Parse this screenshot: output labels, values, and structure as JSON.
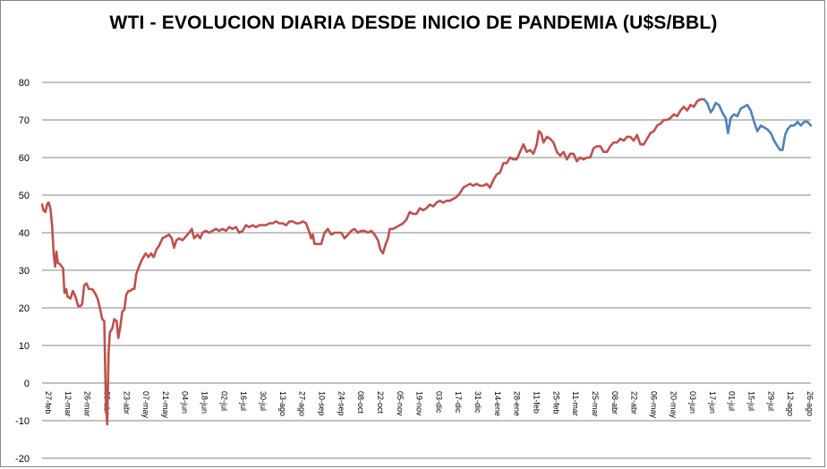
{
  "chart_data": {
    "type": "line",
    "title": "WTI - EVOLUCION DIARIA DESDE INICIO DE PANDEMIA (U$S/BBL)",
    "ylim": [
      -20,
      80
    ],
    "yticks": [
      "-20",
      "-10",
      "0",
      "10",
      "20",
      "30",
      "40",
      "50",
      "60",
      "70",
      "80"
    ],
    "grid": true,
    "legend": "none",
    "xlabels": [
      "27-feb",
      "12-mar",
      "26-mar",
      "09-abr",
      "23-abr",
      "07-may",
      "21-may",
      "04-jun",
      "18-jun",
      "02-jul",
      "16-jul",
      "30-jul",
      "13-ago",
      "27-ago",
      "10-sep",
      "24-sep",
      "08-oct",
      "22-oct",
      "05-nov",
      "19-nov",
      "03-dic",
      "17-dic",
      "31-dic",
      "14-ene",
      "28-ene",
      "11-feb",
      "25-feb",
      "11-mar",
      "25-mar",
      "08-abr",
      "22-abr",
      "06-may",
      "20-may",
      "03-jun",
      "17-jun",
      "01-jul",
      "15-jul",
      "29-jul",
      "12-ago",
      "26-ago"
    ],
    "series": [
      {
        "color": "#c0504d",
        "points": [
          [
            0,
            47.5
          ],
          [
            0.4,
            46
          ],
          [
            1,
            45.5
          ],
          [
            1.6,
            47.8
          ],
          [
            2,
            48
          ],
          [
            2.5,
            46.5
          ],
          [
            3,
            42
          ],
          [
            3.5,
            34
          ],
          [
            3.9,
            31
          ],
          [
            4.3,
            35
          ],
          [
            4.7,
            32
          ],
          [
            5.5,
            31.5
          ],
          [
            6.3,
            30.5
          ],
          [
            6.7,
            24
          ],
          [
            7.2,
            25
          ],
          [
            7.6,
            23
          ],
          [
            8.5,
            22.5
          ],
          [
            9.2,
            24.5
          ],
          [
            10,
            23
          ],
          [
            10.8,
            20.5
          ],
          [
            11.5,
            20.5
          ],
          [
            12,
            21
          ],
          [
            12.6,
            26
          ],
          [
            13.3,
            26.5
          ],
          [
            14,
            25
          ],
          [
            15,
            25
          ],
          [
            15.8,
            24
          ],
          [
            16.6,
            22.5
          ],
          [
            17.3,
            20
          ],
          [
            18,
            17
          ],
          [
            18.6,
            16.5
          ],
          [
            19.1,
            -5
          ],
          [
            19.5,
            -11
          ],
          [
            19.9,
            8
          ],
          [
            20.3,
            13.5
          ],
          [
            21,
            14.5
          ],
          [
            21.6,
            17
          ],
          [
            22.3,
            16.5
          ],
          [
            22.8,
            12
          ],
          [
            23.4,
            15
          ],
          [
            24,
            19
          ],
          [
            24.6,
            19.5
          ],
          [
            25.2,
            23.5
          ],
          [
            25.8,
            24.5
          ],
          [
            26.4,
            24.5
          ],
          [
            27,
            25
          ],
          [
            27.6,
            25
          ],
          [
            28.2,
            29
          ],
          [
            29,
            31
          ],
          [
            30,
            33
          ],
          [
            31,
            34.5
          ],
          [
            31.8,
            33.5
          ],
          [
            32.6,
            34.5
          ],
          [
            33.4,
            33.5
          ],
          [
            34.2,
            35.5
          ],
          [
            35,
            36.5
          ],
          [
            36,
            38.5
          ],
          [
            37,
            39
          ],
          [
            38,
            39.5
          ],
          [
            38.8,
            38.5
          ],
          [
            39.5,
            36
          ],
          [
            40.2,
            38
          ],
          [
            41,
            38.5
          ],
          [
            42,
            38
          ],
          [
            43,
            39
          ],
          [
            44,
            40
          ],
          [
            44.8,
            41
          ],
          [
            45.5,
            38.5
          ],
          [
            46.5,
            39.5
          ],
          [
            47.3,
            38.5
          ],
          [
            48,
            40
          ],
          [
            49,
            40.5
          ],
          [
            50,
            40
          ],
          [
            51,
            40.5
          ],
          [
            52,
            41
          ],
          [
            53,
            40.5
          ],
          [
            54,
            41
          ],
          [
            55,
            40.5
          ],
          [
            56,
            41.5
          ],
          [
            57,
            41
          ],
          [
            58,
            41.5
          ],
          [
            59,
            40
          ],
          [
            60,
            40.5
          ],
          [
            61,
            42
          ],
          [
            62,
            41.5
          ],
          [
            63,
            42
          ],
          [
            64,
            41.5
          ],
          [
            65,
            42
          ],
          [
            66,
            42
          ],
          [
            67,
            42
          ],
          [
            68,
            42.5
          ],
          [
            69,
            42.5
          ],
          [
            70,
            43
          ],
          [
            71,
            42.5
          ],
          [
            72,
            42.5
          ],
          [
            73,
            42
          ],
          [
            74,
            43
          ],
          [
            75,
            43
          ],
          [
            76,
            42.5
          ],
          [
            77,
            42.5
          ],
          [
            78,
            43
          ],
          [
            79,
            42.5
          ],
          [
            80,
            40
          ],
          [
            80.5,
            38.5
          ],
          [
            81,
            39.5
          ],
          [
            81.5,
            37
          ],
          [
            82.5,
            37
          ],
          [
            83.5,
            37
          ],
          [
            84.5,
            40
          ],
          [
            85.5,
            41
          ],
          [
            86.5,
            39.5
          ],
          [
            87.5,
            40
          ],
          [
            88.5,
            40
          ],
          [
            89.5,
            40
          ],
          [
            90.5,
            38.5
          ],
          [
            91.5,
            39.5
          ],
          [
            92.5,
            40.5
          ],
          [
            93.5,
            41
          ],
          [
            94.5,
            40
          ],
          [
            95.5,
            40.5
          ],
          [
            96.5,
            40.5
          ],
          [
            97.5,
            40
          ],
          [
            98.5,
            40.5
          ],
          [
            99.5,
            39.5
          ],
          [
            100.5,
            38
          ],
          [
            101.2,
            35.5
          ],
          [
            102,
            34.5
          ],
          [
            102.8,
            37
          ],
          [
            103.5,
            38.5
          ],
          [
            104,
            41
          ],
          [
            105,
            41
          ],
          [
            106,
            41.5
          ],
          [
            107,
            42
          ],
          [
            108,
            42.5
          ],
          [
            109,
            43.5
          ],
          [
            110,
            45.5
          ],
          [
            111,
            45
          ],
          [
            112,
            45
          ],
          [
            113,
            46.5
          ],
          [
            114,
            46
          ],
          [
            115,
            46.5
          ],
          [
            116,
            47.5
          ],
          [
            117,
            47
          ],
          [
            118,
            48
          ],
          [
            119,
            48.5
          ],
          [
            120,
            48
          ],
          [
            121,
            48.5
          ],
          [
            122,
            48.5
          ],
          [
            123,
            49
          ],
          [
            124,
            49.5
          ],
          [
            125,
            50.5
          ],
          [
            126,
            52
          ],
          [
            127,
            52.5
          ],
          [
            128,
            53
          ],
          [
            129,
            52.5
          ],
          [
            130,
            53
          ],
          [
            131,
            52.5
          ],
          [
            132,
            52.5
          ],
          [
            133,
            53
          ],
          [
            134,
            52
          ],
          [
            135,
            54
          ],
          [
            136,
            55.5
          ],
          [
            137,
            56
          ],
          [
            138,
            58.5
          ],
          [
            139,
            58.5
          ],
          [
            140,
            60
          ],
          [
            141,
            59.5
          ],
          [
            142,
            59.5
          ],
          [
            143,
            61.5
          ],
          [
            144,
            63.5
          ],
          [
            145,
            61.5
          ],
          [
            146,
            62
          ],
          [
            147,
            61
          ],
          [
            148,
            63.5
          ],
          [
            148.6,
            67
          ],
          [
            149.3,
            66.5
          ],
          [
            150,
            64
          ],
          [
            151,
            65.5
          ],
          [
            152,
            65
          ],
          [
            153,
            64
          ],
          [
            154,
            61.5
          ],
          [
            155,
            60.5
          ],
          [
            156,
            61.5
          ],
          [
            157,
            59.5
          ],
          [
            158,
            61
          ],
          [
            159,
            61
          ],
          [
            160,
            59
          ],
          [
            161,
            60
          ],
          [
            162,
            59.5
          ],
          [
            163,
            60
          ],
          [
            164,
            60
          ],
          [
            165,
            62.5
          ],
          [
            166,
            63
          ],
          [
            167,
            63
          ],
          [
            168,
            61.5
          ],
          [
            169,
            61.5
          ],
          [
            170,
            63
          ],
          [
            171,
            64
          ],
          [
            172,
            64
          ],
          [
            173,
            65
          ],
          [
            174,
            64.5
          ],
          [
            175,
            65.5
          ],
          [
            176,
            65.5
          ],
          [
            177,
            64.5
          ],
          [
            178,
            66
          ],
          [
            179,
            63.5
          ],
          [
            180,
            63.5
          ],
          [
            181,
            65
          ],
          [
            182,
            66.5
          ],
          [
            183,
            67
          ],
          [
            184,
            68.5
          ],
          [
            185,
            69
          ],
          [
            186,
            70
          ],
          [
            187,
            70
          ],
          [
            188,
            70.5
          ],
          [
            189,
            71.5
          ],
          [
            190,
            71
          ],
          [
            191,
            72.5
          ],
          [
            192,
            73.5
          ],
          [
            193,
            72.5
          ],
          [
            194,
            74
          ],
          [
            195,
            73.5
          ],
          [
            196,
            75
          ],
          [
            197,
            75.5
          ],
          [
            198,
            75.5
          ]
        ]
      },
      {
        "color": "#4f81bd",
        "points": [
          [
            198,
            75.5
          ],
          [
            199,
            74.5
          ],
          [
            200,
            72
          ],
          [
            200.8,
            73
          ],
          [
            201.5,
            74.5
          ],
          [
            202.5,
            74
          ],
          [
            203.5,
            72
          ],
          [
            204.5,
            70.5
          ],
          [
            205.2,
            66.5
          ],
          [
            206,
            70.5
          ],
          [
            207,
            71.5
          ],
          [
            208,
            71
          ],
          [
            209,
            73
          ],
          [
            210,
            73.5
          ],
          [
            211,
            74
          ],
          [
            212,
            72.5
          ],
          [
            213,
            69.5
          ],
          [
            214,
            67
          ],
          [
            215,
            68.5
          ],
          [
            216,
            68
          ],
          [
            217,
            67.5
          ],
          [
            218,
            66.5
          ],
          [
            219,
            64.5
          ],
          [
            220,
            63
          ],
          [
            220.8,
            62
          ],
          [
            221.5,
            62
          ],
          [
            222.3,
            66
          ],
          [
            223,
            67.5
          ],
          [
            224,
            68.5
          ],
          [
            225,
            68.5
          ],
          [
            226,
            69.5
          ],
          [
            227,
            68.5
          ],
          [
            228,
            69.5
          ],
          [
            229,
            69.5
          ],
          [
            230,
            68.5
          ]
        ]
      }
    ]
  }
}
